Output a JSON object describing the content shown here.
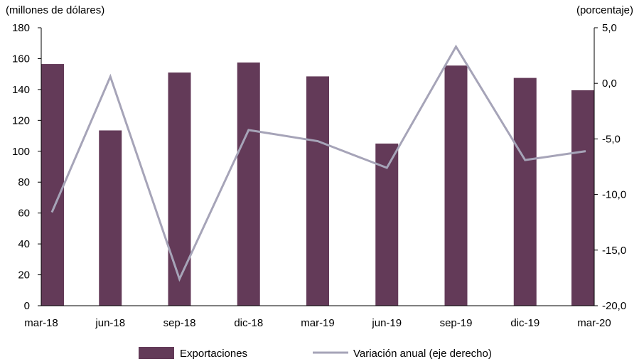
{
  "chart_data": {
    "type": "bar",
    "categories": [
      "mar-18",
      "jun-18",
      "sep-18",
      "dic-18",
      "mar-19",
      "jun-19",
      "sep-19",
      "dic-19",
      "mar-20"
    ],
    "series": [
      {
        "name": "Exportaciones",
        "type": "bar",
        "axis": "left",
        "color": "#633a58",
        "values": [
          156.5,
          113.5,
          151,
          157.5,
          148.5,
          105,
          155.5,
          147.5,
          139.5
        ]
      },
      {
        "name": "Variación anual (eje derecho)",
        "type": "line",
        "axis": "right",
        "color": "#a6a4b8",
        "values": [
          -11.6,
          0.6,
          -17.6,
          -4.2,
          -5.2,
          -7.6,
          3.3,
          -6.9,
          -6.1
        ]
      }
    ],
    "left_axis": {
      "label": "(millones de dólares)",
      "ylim": [
        0,
        180
      ],
      "ticks": [
        "0",
        "20",
        "40",
        "60",
        "80",
        "100",
        "120",
        "140",
        "160",
        "180"
      ]
    },
    "right_axis": {
      "label": "(porcentaje)",
      "ylim": [
        -20,
        5
      ],
      "ticks": [
        "-20,0",
        "-15,0",
        "-10,0",
        "-5,0",
        "0,0",
        "5,0"
      ]
    },
    "grid": false,
    "legend_position": "bottom"
  }
}
